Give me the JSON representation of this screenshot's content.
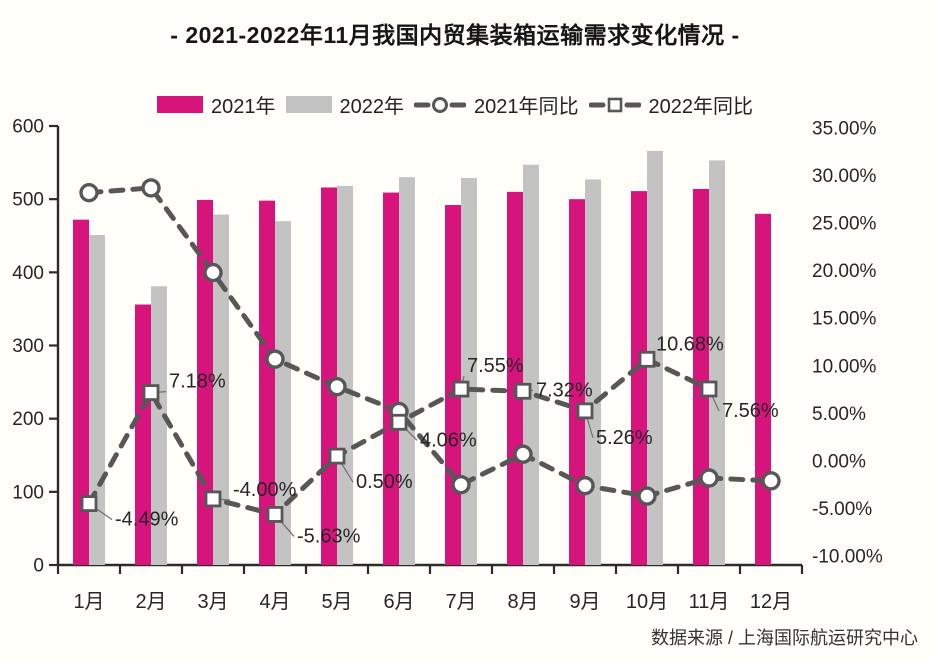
{
  "title": "- 2021-2022年11月我国内贸集装箱运输需求变化情况 -",
  "source": "数据来源 / 上海国际航运研究中心",
  "colors": {
    "bar2021": "#d6147c",
    "bar2022": "#c3c3c3",
    "line": "#575757",
    "axis": "#2b2b2b",
    "text": "#262626",
    "background": "#fffef8"
  },
  "legend": [
    {
      "label": "2021年",
      "type": "bar",
      "marker": "none"
    },
    {
      "label": "2022年",
      "type": "bar",
      "marker": "none"
    },
    {
      "label": "2021年同比",
      "type": "line",
      "marker": "circle"
    },
    {
      "label": "2022年同比",
      "type": "line",
      "marker": "square"
    }
  ],
  "chart_data": {
    "type": "bar+line",
    "title": "- 2021-2022年11月我国内贸集装箱运输需求变化情况 -",
    "categories": [
      "1月",
      "2月",
      "3月",
      "4月",
      "5月",
      "6月",
      "7月",
      "8月",
      "9月",
      "10月",
      "11月",
      "12月"
    ],
    "left_axis": {
      "min": 0,
      "max": 600,
      "ticks": [
        "0",
        "100",
        "200",
        "300",
        "400",
        "500",
        "600"
      ],
      "tick_values": [
        0,
        100,
        200,
        300,
        400,
        500,
        600
      ]
    },
    "right_axis": {
      "min": -10,
      "max": 35,
      "ticks": [
        "35.00%",
        "30.00%",
        "25.00%",
        "20.00%",
        "15.00%",
        "10.00%",
        "5.00%",
        "0.00%",
        "-5.00%",
        "-10.00%"
      ],
      "tick_values": [
        35,
        30,
        25,
        20,
        15,
        10,
        5,
        0,
        -5,
        -10
      ]
    },
    "grid": "off",
    "legend_position": "top",
    "series": [
      {
        "name": "2021年",
        "type": "bar",
        "axis": "left",
        "color": "#d6147c",
        "values": [
          472,
          356,
          499,
          498,
          516,
          509,
          492,
          510,
          500,
          511,
          514,
          480
        ]
      },
      {
        "name": "2022年",
        "type": "bar",
        "axis": "left",
        "color": "#c3c3c3",
        "values": [
          451,
          381,
          479,
          470,
          518,
          530,
          529,
          547,
          527,
          566,
          553,
          null
        ]
      },
      {
        "name": "2021年同比",
        "type": "line",
        "axis": "right",
        "marker": "circle",
        "color": "#575757",
        "unit": "%",
        "values": [
          28.2,
          28.7,
          19.8,
          10.7,
          7.8,
          5.2,
          -2.5,
          0.7,
          -2.6,
          -3.7,
          -1.8,
          -2.1
        ]
      },
      {
        "name": "2022年同比",
        "type": "line",
        "axis": "right",
        "marker": "square",
        "color": "#575757",
        "unit": "%",
        "values": [
          -4.49,
          7.18,
          -4.0,
          -5.63,
          0.5,
          4.06,
          7.55,
          7.32,
          5.26,
          10.68,
          7.56,
          null
        ],
        "labels": [
          "-4.49%",
          "7.18%",
          "-4.00%",
          "-5.63%",
          "0.50%",
          "4.06%",
          "7.55%",
          "7.32%",
          "5.26%",
          "10.68%",
          "7.56%",
          ""
        ],
        "label_offsets": [
          [
            26,
            22
          ],
          [
            18,
            -5
          ],
          [
            20,
            -3
          ],
          [
            22,
            28
          ],
          [
            19,
            32
          ],
          [
            21,
            24
          ],
          [
            6,
            -17
          ],
          [
            13,
            5
          ],
          [
            11,
            33
          ],
          [
            9,
            -9
          ],
          [
            13,
            28
          ],
          null
        ]
      }
    ]
  }
}
